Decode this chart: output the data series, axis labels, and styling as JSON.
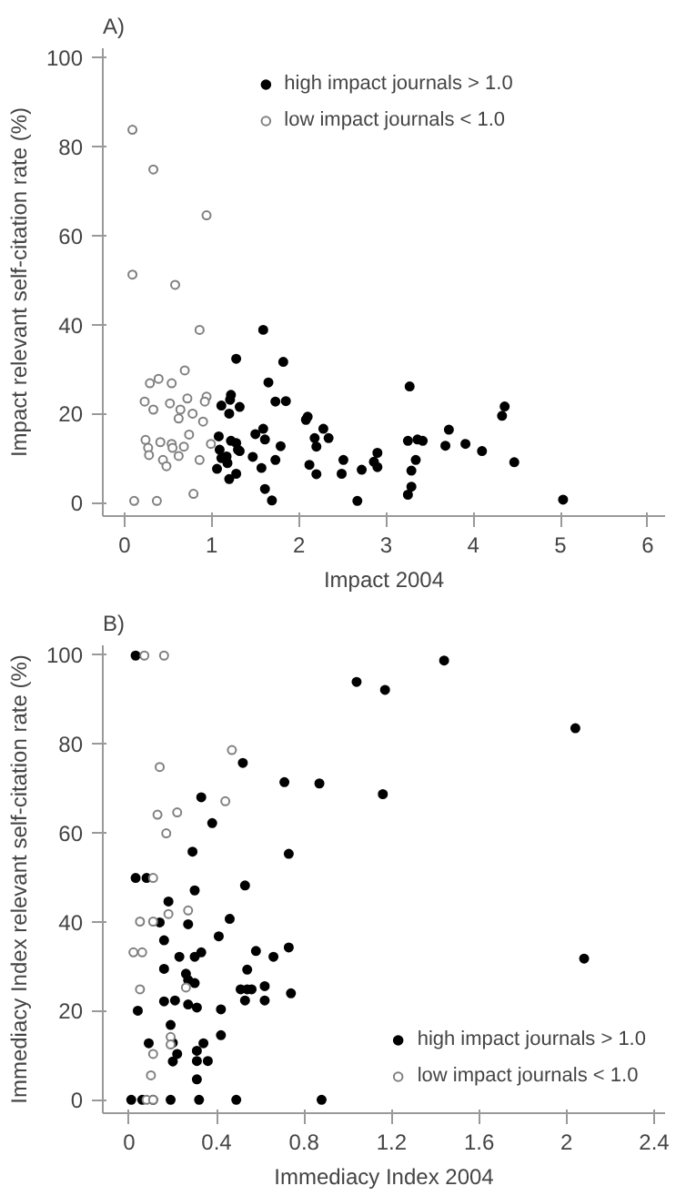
{
  "chart_data": [
    {
      "type": "scatter",
      "title": "A)",
      "xlabel": "Impact 2004",
      "ylabel": "Impact relevant self-citation rate (%)",
      "xlim": [
        -0.25,
        6.2
      ],
      "ylim": [
        -3,
        102
      ],
      "xticks": [
        0,
        1,
        2,
        3,
        4,
        5,
        6
      ],
      "yticks": [
        0,
        20,
        40,
        60,
        80,
        100
      ],
      "grid": false,
      "legend": "top",
      "marker": "circle",
      "series": [
        {
          "name": "high impact journals > 1.0",
          "color": "#000000",
          "x": [
            1.59,
            1.28,
            1.82,
            1.65,
            3.27,
            1.11,
            1.22,
            1.21,
            1.32,
            1.2,
            1.73,
            1.85,
            2.08,
            2.1,
            1.08,
            1.09,
            1.11,
            1.06,
            1.18,
            1.2,
            1.22,
            1.28,
            1.32,
            1.28,
            1.3,
            1.17,
            1.5,
            1.59,
            1.61,
            1.47,
            1.57,
            1.73,
            1.79,
            1.61,
            1.69,
            2.12,
            2.18,
            2.2,
            2.2,
            2.28,
            2.34,
            2.51,
            2.49,
            2.72,
            2.67,
            2.86,
            2.9,
            2.9,
            3.25,
            3.25,
            3.29,
            3.29,
            3.34,
            3.36,
            3.42,
            3.68,
            3.72,
            3.91,
            4.1,
            4.33,
            4.36,
            4.47,
            5.03
          ],
          "values": [
            38.8,
            32.3,
            31.6,
            27,
            26.1,
            21.8,
            24.2,
            23.1,
            21.5,
            20,
            22.7,
            22.8,
            18.6,
            19.3,
            14.9,
            11.9,
            10,
            7.6,
            8.9,
            5.3,
            13.9,
            13.4,
            11.6,
            6.5,
            11.9,
            10.4,
            15.4,
            16.6,
            14.2,
            10.3,
            7.8,
            9.6,
            12.7,
            3.1,
            0.5,
            8.5,
            14.5,
            12.6,
            6.4,
            16.6,
            14.5,
            9.6,
            6.5,
            7.4,
            0.4,
            9.2,
            11.2,
            8,
            13.9,
            1.8,
            3.6,
            7.2,
            9.6,
            14.2,
            13.9,
            12.8,
            16.4,
            13.2,
            11.6,
            19.5,
            21.6,
            9.1,
            0.7
          ]
        },
        {
          "name": "low impact journals < 1.0",
          "color": "#808080",
          "x": [
            0.09,
            0.33,
            0.94,
            0.09,
            0.58,
            0.86,
            0.29,
            0.39,
            0.54,
            0.69,
            0.23,
            0.33,
            0.52,
            0.72,
            0.64,
            0.78,
            0.62,
            0.94,
            0.92,
            0.9,
            0.24,
            0.27,
            0.28,
            0.41,
            0.54,
            0.55,
            0.44,
            0.48,
            0.62,
            0.68,
            0.74,
            0.99,
            0.86,
            0.79,
            0.11,
            0.37
          ],
          "values": [
            83.7,
            74.8,
            64.5,
            51.2,
            48.9,
            38.8,
            26.8,
            27.8,
            26.8,
            29.7,
            22.7,
            20.9,
            22.3,
            23.4,
            20.9,
            20,
            18.9,
            23.8,
            22.7,
            18.2,
            14.1,
            12.3,
            10.7,
            13.6,
            13.2,
            12.3,
            9.6,
            8.2,
            10.5,
            12.6,
            15.3,
            13.2,
            9.6,
            2,
            0.4,
            0.4
          ]
        }
      ]
    },
    {
      "type": "scatter",
      "title": "B)",
      "xlabel": "Immediacy Index 2004",
      "ylabel": "Immediacy Index relevant self-citation rate (%)",
      "xlim": [
        -0.12,
        2.45
      ],
      "ylim": [
        -3,
        102
      ],
      "xticks": [
        0,
        0.4,
        0.8,
        1.2,
        1.6,
        2,
        2.4
      ],
      "yticks": [
        0,
        20,
        40,
        60,
        80,
        100
      ],
      "grid": false,
      "legend": "bottom right",
      "marker": "circle",
      "series": [
        {
          "name": "high impact journals > 1.0",
          "color": "#000000",
          "x": [
            0.03,
            1.04,
            1.17,
            1.44,
            2.04,
            1.16,
            0.52,
            0.71,
            0.87,
            0.33,
            0.38,
            0.29,
            0.73,
            0.03,
            0.08,
            0.3,
            0.53,
            0.18,
            0.46,
            0.14,
            0.27,
            0.16,
            0.41,
            0.23,
            0.3,
            0.33,
            0.58,
            0.66,
            0.73,
            2.08,
            0.16,
            0.26,
            0.27,
            0.3,
            0.21,
            0.16,
            0.27,
            0.31,
            0.04,
            0.42,
            0.54,
            0.51,
            0.56,
            0.54,
            0.62,
            0.53,
            0.62,
            0.74,
            0.19,
            0.09,
            0.2,
            0.22,
            0.2,
            0.31,
            0.34,
            0.31,
            0.36,
            0.42,
            0.31,
            0.01,
            0.06,
            0.11,
            0.19,
            0.32,
            0.49,
            0.88
          ],
          "values": [
            99.7,
            93.8,
            92,
            98.6,
            83.4,
            68.6,
            75.6,
            71.3,
            71,
            67.9,
            62.1,
            55.7,
            55.2,
            49.8,
            49.8,
            47,
            48.1,
            44.5,
            40.6,
            39.8,
            39.4,
            35.8,
            36.7,
            32.1,
            32.1,
            33.1,
            33.4,
            32.1,
            34.2,
            31.7,
            29.4,
            28.3,
            26.9,
            26.2,
            22.3,
            22.1,
            21.4,
            20.7,
            20,
            20.3,
            24.8,
            24.8,
            24.8,
            29.2,
            25.5,
            22.3,
            22.3,
            23.9,
            16.8,
            12.7,
            12.8,
            10.3,
            8.6,
            11,
            12.7,
            8.7,
            8.7,
            14.5,
            4.6,
            0,
            0,
            0,
            0,
            0,
            0,
            0
          ]
        },
        {
          "name": "low impact journals < 1.0",
          "color": "#808080",
          "x": [
            0.07,
            0.16,
            0.47,
            0.14,
            0.13,
            0.22,
            0.44,
            0.17,
            0.11,
            0.18,
            0.27,
            0.05,
            0.11,
            0.02,
            0.06,
            0.05,
            0.26,
            0.19,
            0.19,
            0.11,
            0.1,
            0.08,
            0.11
          ],
          "values": [
            99.7,
            99.7,
            78.5,
            74.7,
            64,
            64.5,
            67,
            59.8,
            49.8,
            41.7,
            42.5,
            40,
            40,
            33.1,
            33.1,
            24.8,
            25.2,
            14.1,
            12.4,
            10.3,
            5.5,
            0,
            0
          ]
        }
      ]
    }
  ]
}
